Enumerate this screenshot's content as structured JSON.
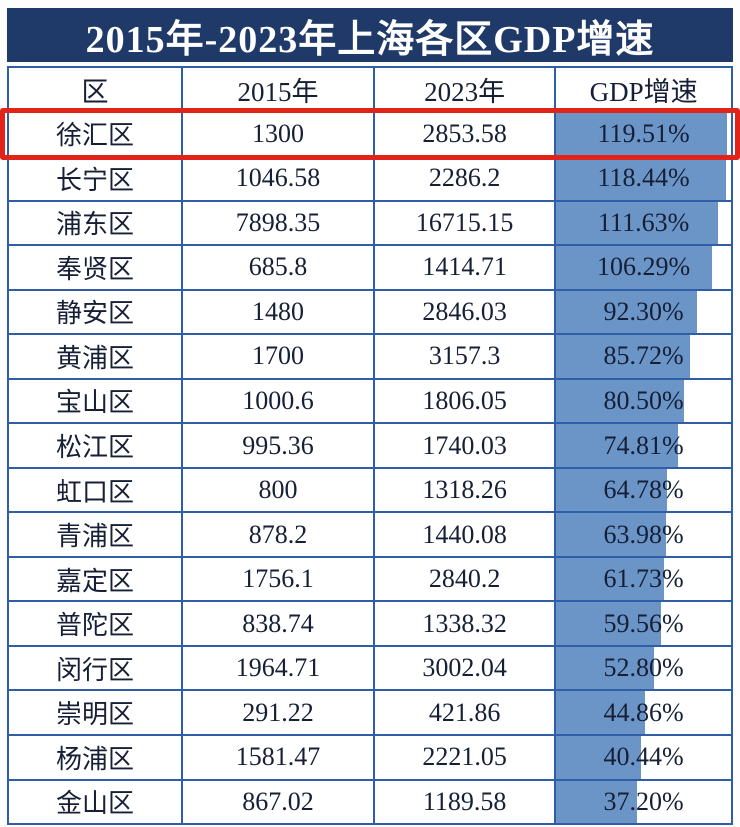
{
  "title": "2015年-2023年上海各区GDP增速",
  "table": {
    "headers": [
      "区",
      "2015年",
      "2023年",
      "GDP增速"
    ],
    "rows": [
      {
        "district": "徐汇区",
        "y2015": "1300",
        "y2023": "2853.58",
        "growth": "119.51%",
        "growth_value": 119.51,
        "highlighted": true
      },
      {
        "district": "长宁区",
        "y2015": "1046.58",
        "y2023": "2286.2",
        "growth": "118.44%",
        "growth_value": 118.44,
        "highlighted": false
      },
      {
        "district": "浦东区",
        "y2015": "7898.35",
        "y2023": "16715.15",
        "growth": "111.63%",
        "growth_value": 111.63,
        "highlighted": false
      },
      {
        "district": "奉贤区",
        "y2015": "685.8",
        "y2023": "1414.71",
        "growth": "106.29%",
        "growth_value": 106.29,
        "highlighted": false
      },
      {
        "district": "静安区",
        "y2015": "1480",
        "y2023": "2846.03",
        "growth": "92.30%",
        "growth_value": 92.3,
        "highlighted": false
      },
      {
        "district": "黄浦区",
        "y2015": "1700",
        "y2023": "3157.3",
        "growth": "85.72%",
        "growth_value": 85.72,
        "highlighted": false
      },
      {
        "district": "宝山区",
        "y2015": "1000.6",
        "y2023": "1806.05",
        "growth": "80.50%",
        "growth_value": 80.5,
        "highlighted": false
      },
      {
        "district": "松江区",
        "y2015": "995.36",
        "y2023": "1740.03",
        "growth": "74.81%",
        "growth_value": 74.81,
        "highlighted": false
      },
      {
        "district": "虹口区",
        "y2015": "800",
        "y2023": "1318.26",
        "growth": "64.78%",
        "growth_value": 64.78,
        "highlighted": false
      },
      {
        "district": "青浦区",
        "y2015": "878.2",
        "y2023": "1440.08",
        "growth": "63.98%",
        "growth_value": 63.98,
        "highlighted": false
      },
      {
        "district": "嘉定区",
        "y2015": "1756.1",
        "y2023": "2840.2",
        "growth": "61.73%",
        "growth_value": 61.73,
        "highlighted": false
      },
      {
        "district": "普陀区",
        "y2015": "838.74",
        "y2023": "1338.32",
        "growth": "59.56%",
        "growth_value": 59.56,
        "highlighted": false
      },
      {
        "district": "闵行区",
        "y2015": "1964.71",
        "y2023": "3002.04",
        "growth": "52.80%",
        "growth_value": 52.8,
        "highlighted": false
      },
      {
        "district": "崇明区",
        "y2015": "291.22",
        "y2023": "421.86",
        "growth": "44.86%",
        "growth_value": 44.86,
        "highlighted": false
      },
      {
        "district": "杨浦区",
        "y2015": "1581.47",
        "y2023": "2221.05",
        "growth": "40.44%",
        "growth_value": 40.44,
        "highlighted": false
      },
      {
        "district": "金山区",
        "y2015": "867.02",
        "y2023": "1189.58",
        "growth": "37.20%",
        "growth_value": 37.2,
        "highlighted": false
      }
    ]
  },
  "colors": {
    "title_bg": "#1f3a68",
    "title_text": "#ffffff",
    "table_border": "#2f5da8",
    "databar": "#6b94c7",
    "text": "#151f36",
    "highlight_border": "#e2231a"
  },
  "chart_data": {
    "type": "table",
    "title": "2015年-2023年上海各区GDP增速",
    "columns": [
      "区",
      "2015年",
      "2023年",
      "GDP增速"
    ],
    "rows": [
      [
        "徐汇区",
        1300,
        2853.58,
        119.51
      ],
      [
        "长宁区",
        1046.58,
        2286.2,
        118.44
      ],
      [
        "浦东区",
        7898.35,
        16715.15,
        111.63
      ],
      [
        "奉贤区",
        685.8,
        1414.71,
        106.29
      ],
      [
        "静安区",
        1480,
        2846.03,
        92.3
      ],
      [
        "黄浦区",
        1700,
        3157.3,
        85.72
      ],
      [
        "宝山区",
        1000.6,
        1806.05,
        80.5
      ],
      [
        "松江区",
        995.36,
        1740.03,
        74.81
      ],
      [
        "虹口区",
        800,
        1318.26,
        64.78
      ],
      [
        "青浦区",
        878.2,
        1440.08,
        63.98
      ],
      [
        "嘉定区",
        1756.1,
        2840.2,
        61.73
      ],
      [
        "普陀区",
        838.74,
        1338.32,
        59.56
      ],
      [
        "闵行区",
        1964.71,
        3002.04,
        52.8
      ],
      [
        "崇明区",
        291.22,
        421.86,
        44.86
      ],
      [
        "杨浦区",
        1581.47,
        2221.05,
        40.44
      ],
      [
        "金山区",
        867.02,
        1189.58,
        37.2
      ]
    ],
    "databar_column": "GDP增速",
    "databar_unit": "%",
    "highlighted_row": "徐汇区",
    "layout": {
      "databar_color": "#6b94c7",
      "sorted_desc_by": "GDP增速"
    }
  }
}
